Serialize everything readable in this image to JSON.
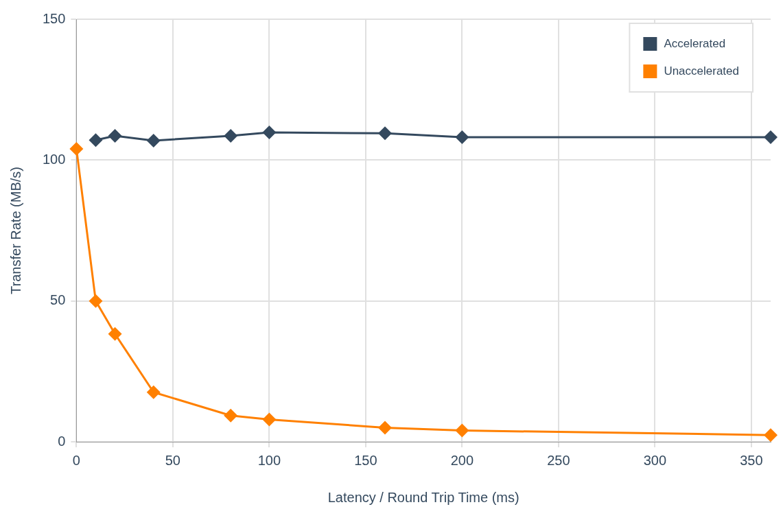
{
  "chart_data": {
    "type": "line",
    "xlabel": "Latency / Round Trip Time (ms)",
    "ylabel": "Transfer Rate (MB/s)",
    "xlim": [
      0,
      360
    ],
    "xticks": [
      0,
      50,
      100,
      150,
      200,
      250,
      300,
      350
    ],
    "ylim": [
      0,
      150
    ],
    "yticks": [
      0,
      50,
      100,
      150
    ],
    "grid": true,
    "legend": "top right",
    "marker": "diamond",
    "line_style": "solid",
    "series": [
      {
        "name": "Accelerated",
        "color": "#34495e",
        "x": [
          10,
          20,
          40,
          80,
          100,
          160,
          200,
          360
        ],
        "values": [
          107.1,
          108.6,
          106.9,
          108.6,
          109.8,
          109.5,
          108.1,
          108.1
        ]
      },
      {
        "name": "Unaccelerated",
        "color": "#ff8000",
        "x": [
          0,
          10,
          20,
          40,
          80,
          100,
          160,
          200,
          360
        ],
        "values": [
          104,
          50,
          38.3,
          17.6,
          9.3,
          7.9,
          5,
          4,
          2.4
        ]
      }
    ]
  }
}
